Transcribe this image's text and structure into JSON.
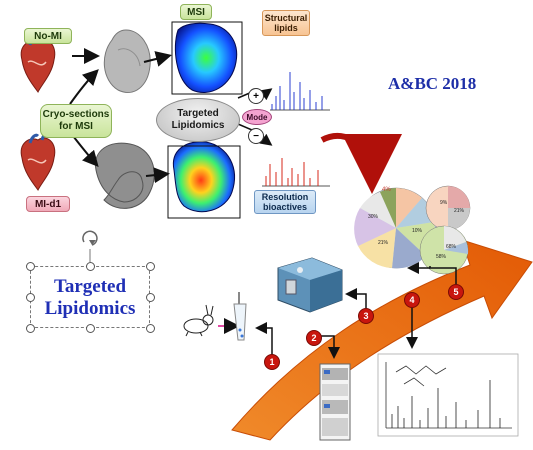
{
  "labels": {
    "no_mi": "No-MI",
    "mi_d1": "MI-d1",
    "cryo": "Cryo-sections for MSI",
    "msi": "MSI",
    "targeted_lipidomics_center": "Targeted Lipidomics",
    "mode": "Mode",
    "plus": "+",
    "minus": "−",
    "structural_lipids": "Structural lipids",
    "resolution_bioactives": "Resolution bioactives",
    "conference": "A&BC 2018",
    "targeted_lipidomics_box": "Targeted Lipidomics"
  },
  "steps": [
    "1",
    "2",
    "3",
    "4",
    "5"
  ],
  "pie_labels": {
    "big_pie_top": "4%",
    "big_pie_left": "30%",
    "big_pie_bottom": "21%",
    "big_pie_right": "10%",
    "small_pie_top_a": "9%",
    "small_pie_top_b": "21%",
    "small_pie_bottom_a": "58%",
    "small_pie_bottom_b": "68%"
  },
  "colors": {
    "arrow_orange": "#ee6a0c",
    "step_red": "#c8160e",
    "title_blue": "#1e2fa8"
  }
}
